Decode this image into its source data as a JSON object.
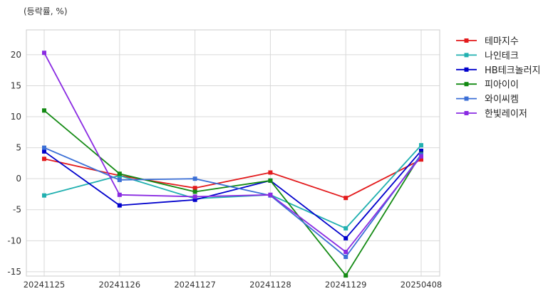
{
  "chart_data": {
    "type": "line",
    "unit_label": "(등락률, %)",
    "categories": [
      "20241125",
      "20241126",
      "20241127",
      "20241128",
      "20241129",
      "20250408"
    ],
    "y_ticks": [
      20,
      15,
      10,
      5,
      0,
      -5,
      -10,
      -15
    ],
    "ylim": [
      -15.7,
      24.0
    ],
    "grid": true,
    "legend_position": "right",
    "series": [
      {
        "name": "테마지수",
        "color": "#e31a1c",
        "values": [
          3.2,
          0.5,
          -1.5,
          1.0,
          -3.1,
          3.1
        ]
      },
      {
        "name": "나인테크",
        "color": "#21b0b0",
        "values": [
          -2.7,
          0.5,
          -3.2,
          -2.6,
          -8.0,
          5.4
        ]
      },
      {
        "name": "HB테크놀러지",
        "color": "#0000cc",
        "values": [
          4.4,
          -4.3,
          -3.4,
          -0.3,
          -9.6,
          4.5
        ]
      },
      {
        "name": "피아이이",
        "color": "#138a13",
        "values": [
          11.0,
          0.8,
          -2.1,
          -0.3,
          -15.6,
          4.0
        ]
      },
      {
        "name": "와이씨켐",
        "color": "#3b6fd6",
        "values": [
          5.0,
          -0.2,
          0.0,
          -2.7,
          -12.6,
          3.9
        ]
      },
      {
        "name": "한빛레이저",
        "color": "#8a2be2",
        "values": [
          20.3,
          -2.6,
          -2.9,
          -2.6,
          -11.8,
          3.6
        ]
      }
    ]
  }
}
